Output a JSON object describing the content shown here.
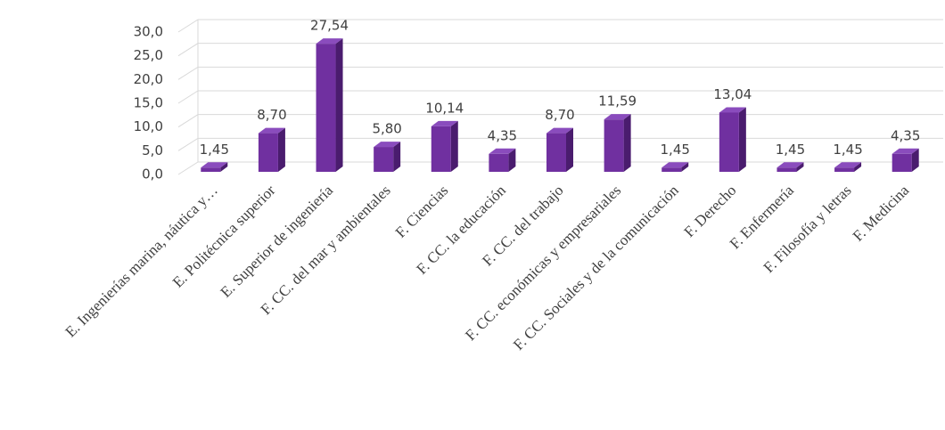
{
  "chart_data": {
    "type": "bar3d",
    "categories": [
      "E. Ingenierías marina, náutica y…",
      "E. Politécnica superior",
      "E. Superior de ingeniería",
      "F. CC. del mar y ambientales",
      "F.  Ciencias",
      "F. CC. la educación",
      "F. CC. del trabajo",
      "F. CC. económicas y empresariales",
      "F. CC. Sociales y de la comunicación",
      "F.  Derecho",
      "F. Enfermería",
      "F. Filosofía y letras",
      "F. Medicina"
    ],
    "values": [
      1.45,
      8.7,
      27.54,
      5.8,
      10.14,
      4.35,
      8.7,
      11.59,
      1.45,
      13.04,
      1.45,
      1.45,
      4.35
    ],
    "value_labels": [
      "1,45",
      "8,70",
      "27,54",
      "5,80",
      "10,14",
      "4,35",
      "8,70",
      "11,59",
      "1,45",
      "13,04",
      "1,45",
      "1,45",
      "4,35"
    ],
    "color": "#7030a0",
    "ylim": [
      0,
      30
    ],
    "yticks": [
      {
        "value": 0,
        "label": "0,0"
      },
      {
        "value": 5,
        "label": "5,0"
      },
      {
        "value": 10,
        "label": "10,0"
      },
      {
        "value": 15,
        "label": "15,0"
      },
      {
        "value": 20,
        "label": "20,0"
      },
      {
        "value": 25,
        "label": "25,0"
      },
      {
        "value": 30,
        "label": "30,0"
      }
    ],
    "grid": true
  }
}
